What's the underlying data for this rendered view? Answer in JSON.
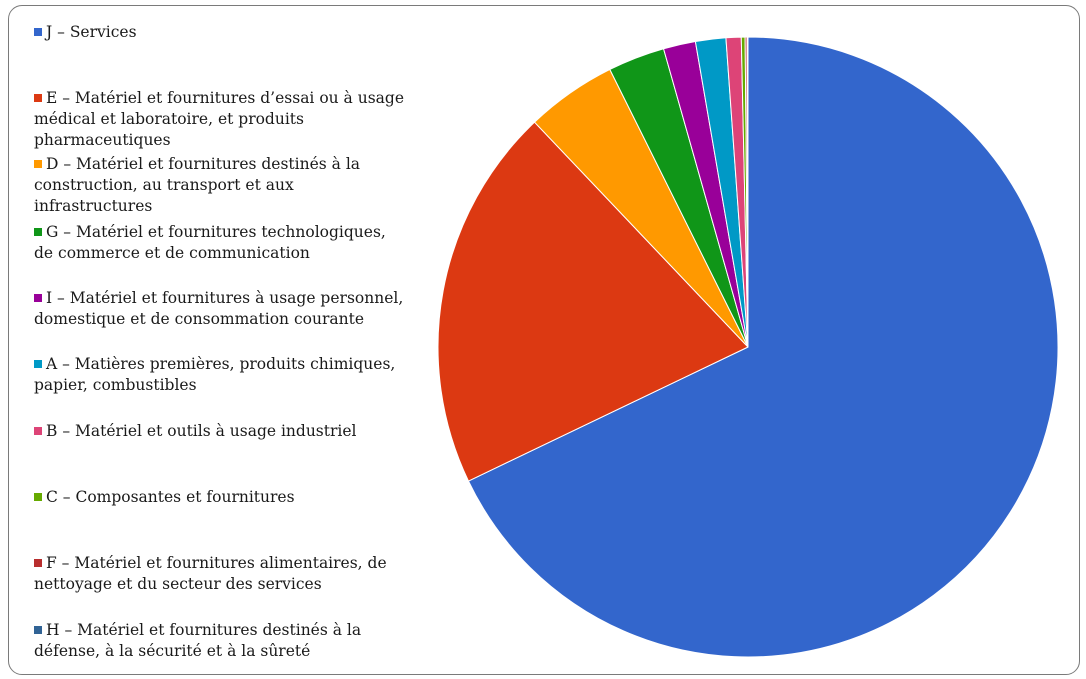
{
  "chart_data": {
    "type": "pie",
    "title": "",
    "legend_position": "left",
    "start_angle_deg": 0,
    "direction": "clockwise",
    "slices": [
      {
        "label": "J – Services",
        "value": 68.8,
        "color": "#3366cc"
      },
      {
        "label": "E – Matériel et fournitures d’essai ou à usage médical et laboratoire, et produits pharmaceutiques",
        "value": 20.3,
        "color": "#dc3912"
      },
      {
        "label": "D – Matériel et fournitures destinés à la construction, au transport et aux infrastructures",
        "value": 4.8,
        "color": "#ff9900"
      },
      {
        "label": "G – Matériel et fournitures technologiques, de commerce et de communication",
        "value": 3.0,
        "color": "#109618"
      },
      {
        "label": "I – Matériel et fournitures à usage personnel, domestique et de consommation courante",
        "value": 1.7,
        "color": "#990099"
      },
      {
        "label": "A – Matières premières, produits chimiques, papier, combustibles",
        "value": 1.6,
        "color": "#0099c6"
      },
      {
        "label": "B – Matériel et outils à usage industriel",
        "value": 0.8,
        "color": "#dd4477"
      },
      {
        "label": "C – Composantes et fournitures",
        "value": 0.2,
        "color": "#66aa00"
      },
      {
        "label": "F – Matériel et fournitures alimentaires, de nettoyage et du secteur des services",
        "value": 0.1,
        "color": "#b82e2e"
      },
      {
        "label": "H – Matériel et fournitures destinés à la défense, à la sécurité et à la sûreté",
        "value": 0.05,
        "color": "#316395"
      }
    ]
  }
}
